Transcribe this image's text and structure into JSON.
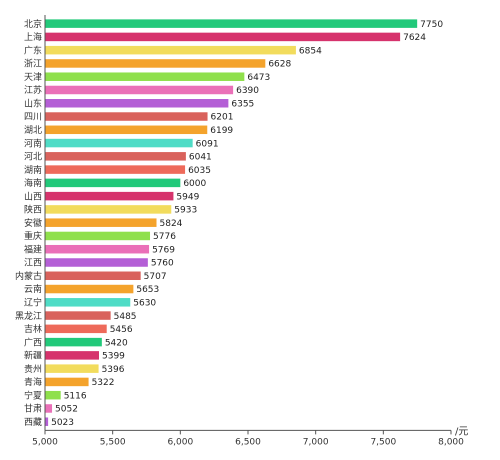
{
  "chart_data": {
    "type": "bar",
    "orientation": "horizontal",
    "categories": [
      "北京",
      "上海",
      "广东",
      "浙江",
      "天津",
      "江苏",
      "山东",
      "四川",
      "湖北",
      "河南",
      "河北",
      "湖南",
      "海南",
      "山西",
      "陕西",
      "安徽",
      "重庆",
      "福建",
      "江西",
      "内蒙古",
      "云南",
      "辽宁",
      "黑龙江",
      "吉林",
      "广西",
      "新疆",
      "贵州",
      "青海",
      "宁夏",
      "甘肃",
      "西藏"
    ],
    "values": [
      7750,
      7624,
      6854,
      6628,
      6473,
      6390,
      6355,
      6201,
      6199,
      6091,
      6041,
      6035,
      6000,
      5949,
      5933,
      5824,
      5776,
      5769,
      5760,
      5707,
      5653,
      5630,
      5485,
      5456,
      5420,
      5399,
      5396,
      5322,
      5116,
      5052,
      5023
    ],
    "value_labels": [
      "7750",
      "7624",
      "6854",
      "6628",
      "6473",
      "6390",
      "6355",
      "6201",
      "6199",
      "6091",
      "6041",
      "6035",
      "6000",
      "5949",
      "5933",
      "5824",
      "5776",
      "5769",
      "5760",
      "5707",
      "5653",
      "5630",
      "5485",
      "5456",
      "5420",
      "5399",
      "5396",
      "5322",
      "5116",
      "5052",
      "5023"
    ],
    "colors": [
      "#22c97a",
      "#d6336c",
      "#f2dc5d",
      "#f4a32c",
      "#8fe04c",
      "#ea70b8",
      "#b45fd6",
      "#d9625c",
      "#f4a32c",
      "#4fdcc6",
      "#d9625c",
      "#ee6a5a",
      "#22c97a",
      "#d6336c",
      "#f2dc5d",
      "#f4a32c",
      "#8fe04c",
      "#ea70b8",
      "#b45fd6",
      "#d9625c",
      "#f4a32c",
      "#4fdcc6",
      "#d9625c",
      "#ee6a5a",
      "#22c97a",
      "#d6336c",
      "#f2dc5d",
      "#f4a32c",
      "#8fe04c",
      "#ea70b8",
      "#b45fd6"
    ],
    "xlim": [
      5000,
      8000
    ],
    "xticks": [
      5000,
      5500,
      6000,
      6500,
      7000,
      7500,
      8000
    ],
    "xtick_labels": [
      "5,000",
      "5,500",
      "6,000",
      "6,500",
      "7,000",
      "7,500",
      "8,000"
    ],
    "xunit": "/元",
    "grid": false
  }
}
